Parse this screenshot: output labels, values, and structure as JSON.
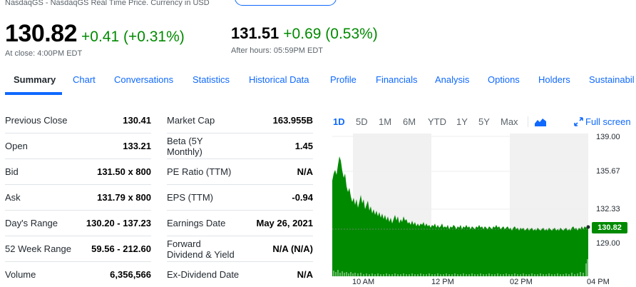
{
  "header": {
    "exchange_line": "NasdaqGS - NasdaqGS Real Time Price. Currency in USD"
  },
  "quote": {
    "price": "130.82",
    "change": "+0.41 (+0.31%)",
    "close_note": "At close: 4:00PM EDT",
    "after_price": "131.51",
    "after_change": "+0.69 (0.53%)",
    "after_note": "After hours: 05:59PM EDT"
  },
  "tabs": [
    "Summary",
    "Chart",
    "Conversations",
    "Statistics",
    "Historical Data",
    "Profile",
    "Financials",
    "Analysis",
    "Options",
    "Holders",
    "Sustainabil"
  ],
  "stats_left": [
    {
      "label": "Previous Close",
      "value": "130.41"
    },
    {
      "label": "Open",
      "value": "133.21"
    },
    {
      "label": "Bid",
      "value": "131.50 x 800"
    },
    {
      "label": "Ask",
      "value": "131.79 x 800"
    },
    {
      "label": "Day's Range",
      "value": "130.20 - 137.23"
    },
    {
      "label": "52 Week Range",
      "value": "59.56 - 212.60"
    },
    {
      "label": "Volume",
      "value": "6,356,566"
    }
  ],
  "stats_right": [
    {
      "label": "Market Cap",
      "value": "163.955B"
    },
    {
      "label": "Beta (5Y\nMonthly)",
      "value": "1.45"
    },
    {
      "label": "PE Ratio (TTM)",
      "value": "N/A"
    },
    {
      "label": "EPS (TTM)",
      "value": "-0.94"
    },
    {
      "label": "Earnings Date",
      "value": "May 26, 2021"
    },
    {
      "label": "Forward\nDividend & Yield",
      "value": "N/A (N/A)"
    },
    {
      "label": "Ex-Dividend Date",
      "value": "N/A"
    }
  ],
  "chart": {
    "ranges": [
      "1D",
      "5D",
      "1M",
      "6M",
      "YTD",
      "1Y",
      "5Y",
      "Max"
    ],
    "active_range": "1D",
    "fullscreen_label": "Full screen",
    "chart_type_icon": "mountain-chart-icon",
    "fullscreen_icon": "expand-arrows-icon",
    "y_ticks": [
      "139.00",
      "135.67",
      "132.33",
      "129.00"
    ],
    "x_ticks": [
      "10 AM",
      "12 PM",
      "02 PM",
      "04 PM"
    ],
    "current_price_tag": "130.82",
    "accent_color": "#0f69ff",
    "positive_color": "#008a00"
  }
}
